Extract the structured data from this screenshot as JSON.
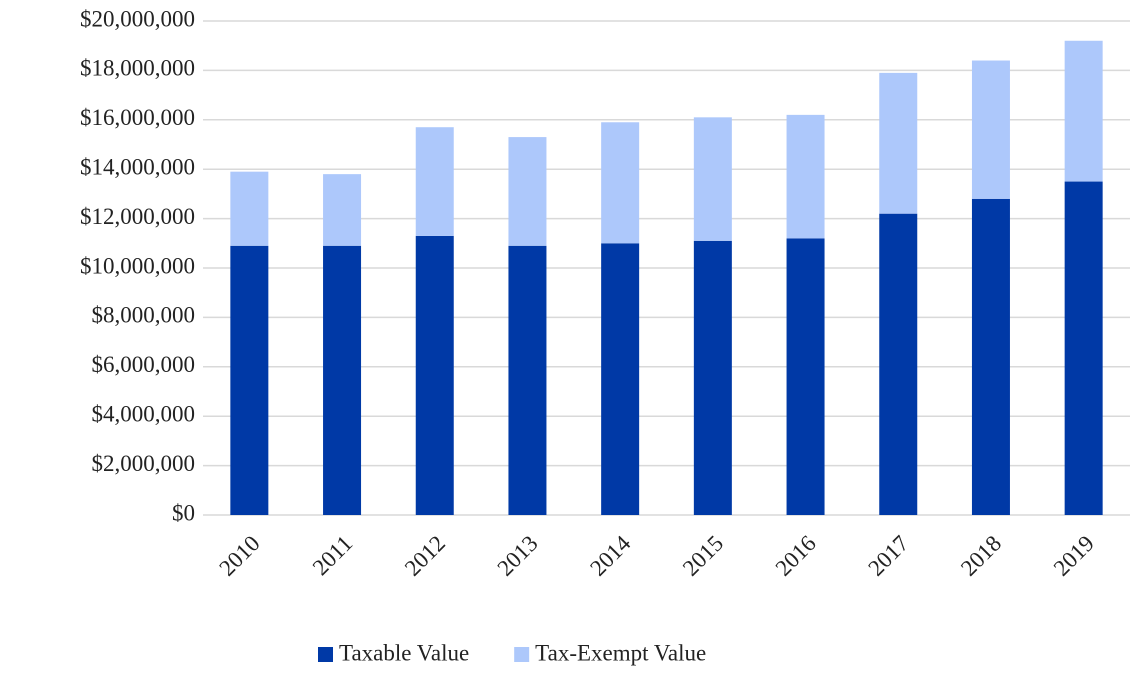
{
  "chart_data": {
    "type": "stacked_bar",
    "categories": [
      "2010",
      "2011",
      "2012",
      "2013",
      "2014",
      "2015",
      "2016",
      "2017",
      "2018",
      "2019"
    ],
    "series": [
      {
        "name": "Taxable Value",
        "color": "#0039a6",
        "values": [
          10900000,
          10900000,
          11300000,
          10900000,
          11000000,
          11100000,
          11200000,
          12200000,
          12800000,
          13500000
        ]
      },
      {
        "name": "Tax-Exempt Value",
        "color": "#adc8fb",
        "values": [
          3000000,
          2900000,
          4400000,
          4400000,
          4900000,
          5000000,
          5000000,
          5700000,
          5600000,
          5700000
        ]
      }
    ],
    "ylim": [
      0,
      20000000
    ],
    "yticks": [
      {
        "value": 0,
        "label": "$0"
      },
      {
        "value": 2000000,
        "label": "$2,000,000"
      },
      {
        "value": 4000000,
        "label": "$4,000,000"
      },
      {
        "value": 6000000,
        "label": "$6,000,000"
      },
      {
        "value": 8000000,
        "label": "$8,000,000"
      },
      {
        "value": 10000000,
        "label": "$10,000,000"
      },
      {
        "value": 12000000,
        "label": "$12,000,000"
      },
      {
        "value": 14000000,
        "label": "$14,000,000"
      },
      {
        "value": 16000000,
        "label": "$16,000,000"
      },
      {
        "value": 18000000,
        "label": "$18,000,000"
      },
      {
        "value": 20000000,
        "label": "$20,000,000"
      }
    ],
    "grid": true,
    "legend": "bottom"
  }
}
